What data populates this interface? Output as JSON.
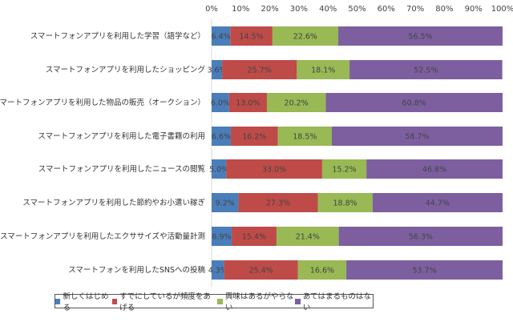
{
  "chart_data": {
    "type": "bar",
    "orientation": "horizontal",
    "stacked": "percent",
    "categories": [
      "スマートフォンアプリを利用した学習（語学など）",
      "スマートフォンアプリを利用したショッピング",
      "スマートフォンアプリを利用した物品の販売（オークション）",
      "スマートフォンアプリを利用した電子書籍の利用",
      "スマートフォンアプリを利用したニュースの閲覧",
      "スマートフォンアプリを利用した節約やお小遣い稼ぎ",
      "スマートフォンアプリを利用したエクササイズや活動量計測",
      "スマートフォンを利用したSNSへの投稿"
    ],
    "series": [
      {
        "name": "新しくはじめる",
        "color": "#4a7ebb",
        "values": [
          6.4,
          3.6,
          6.0,
          6.6,
          5.0,
          9.2,
          6.9,
          4.3
        ]
      },
      {
        "name": "すでにしているが頻度をあげる",
        "color": "#be4b48",
        "values": [
          14.5,
          25.7,
          13.0,
          16.2,
          33.0,
          27.3,
          15.4,
          25.4
        ]
      },
      {
        "name": "興味はあるがやらない",
        "color": "#98b954",
        "values": [
          22.6,
          18.1,
          20.2,
          18.5,
          15.2,
          18.8,
          21.4,
          16.6
        ]
      },
      {
        "name": "あてはまるものはない",
        "color": "#7d5fa0",
        "values": [
          56.5,
          52.5,
          60.8,
          58.7,
          46.8,
          44.7,
          56.3,
          53.7
        ]
      }
    ],
    "xlim": [
      0,
      100
    ],
    "xticks": [
      "0%",
      "10%",
      "20%",
      "30%",
      "40%",
      "50%",
      "60%",
      "70%",
      "80%",
      "90%",
      "100%"
    ],
    "legend_position": "bottom",
    "grid": false
  }
}
